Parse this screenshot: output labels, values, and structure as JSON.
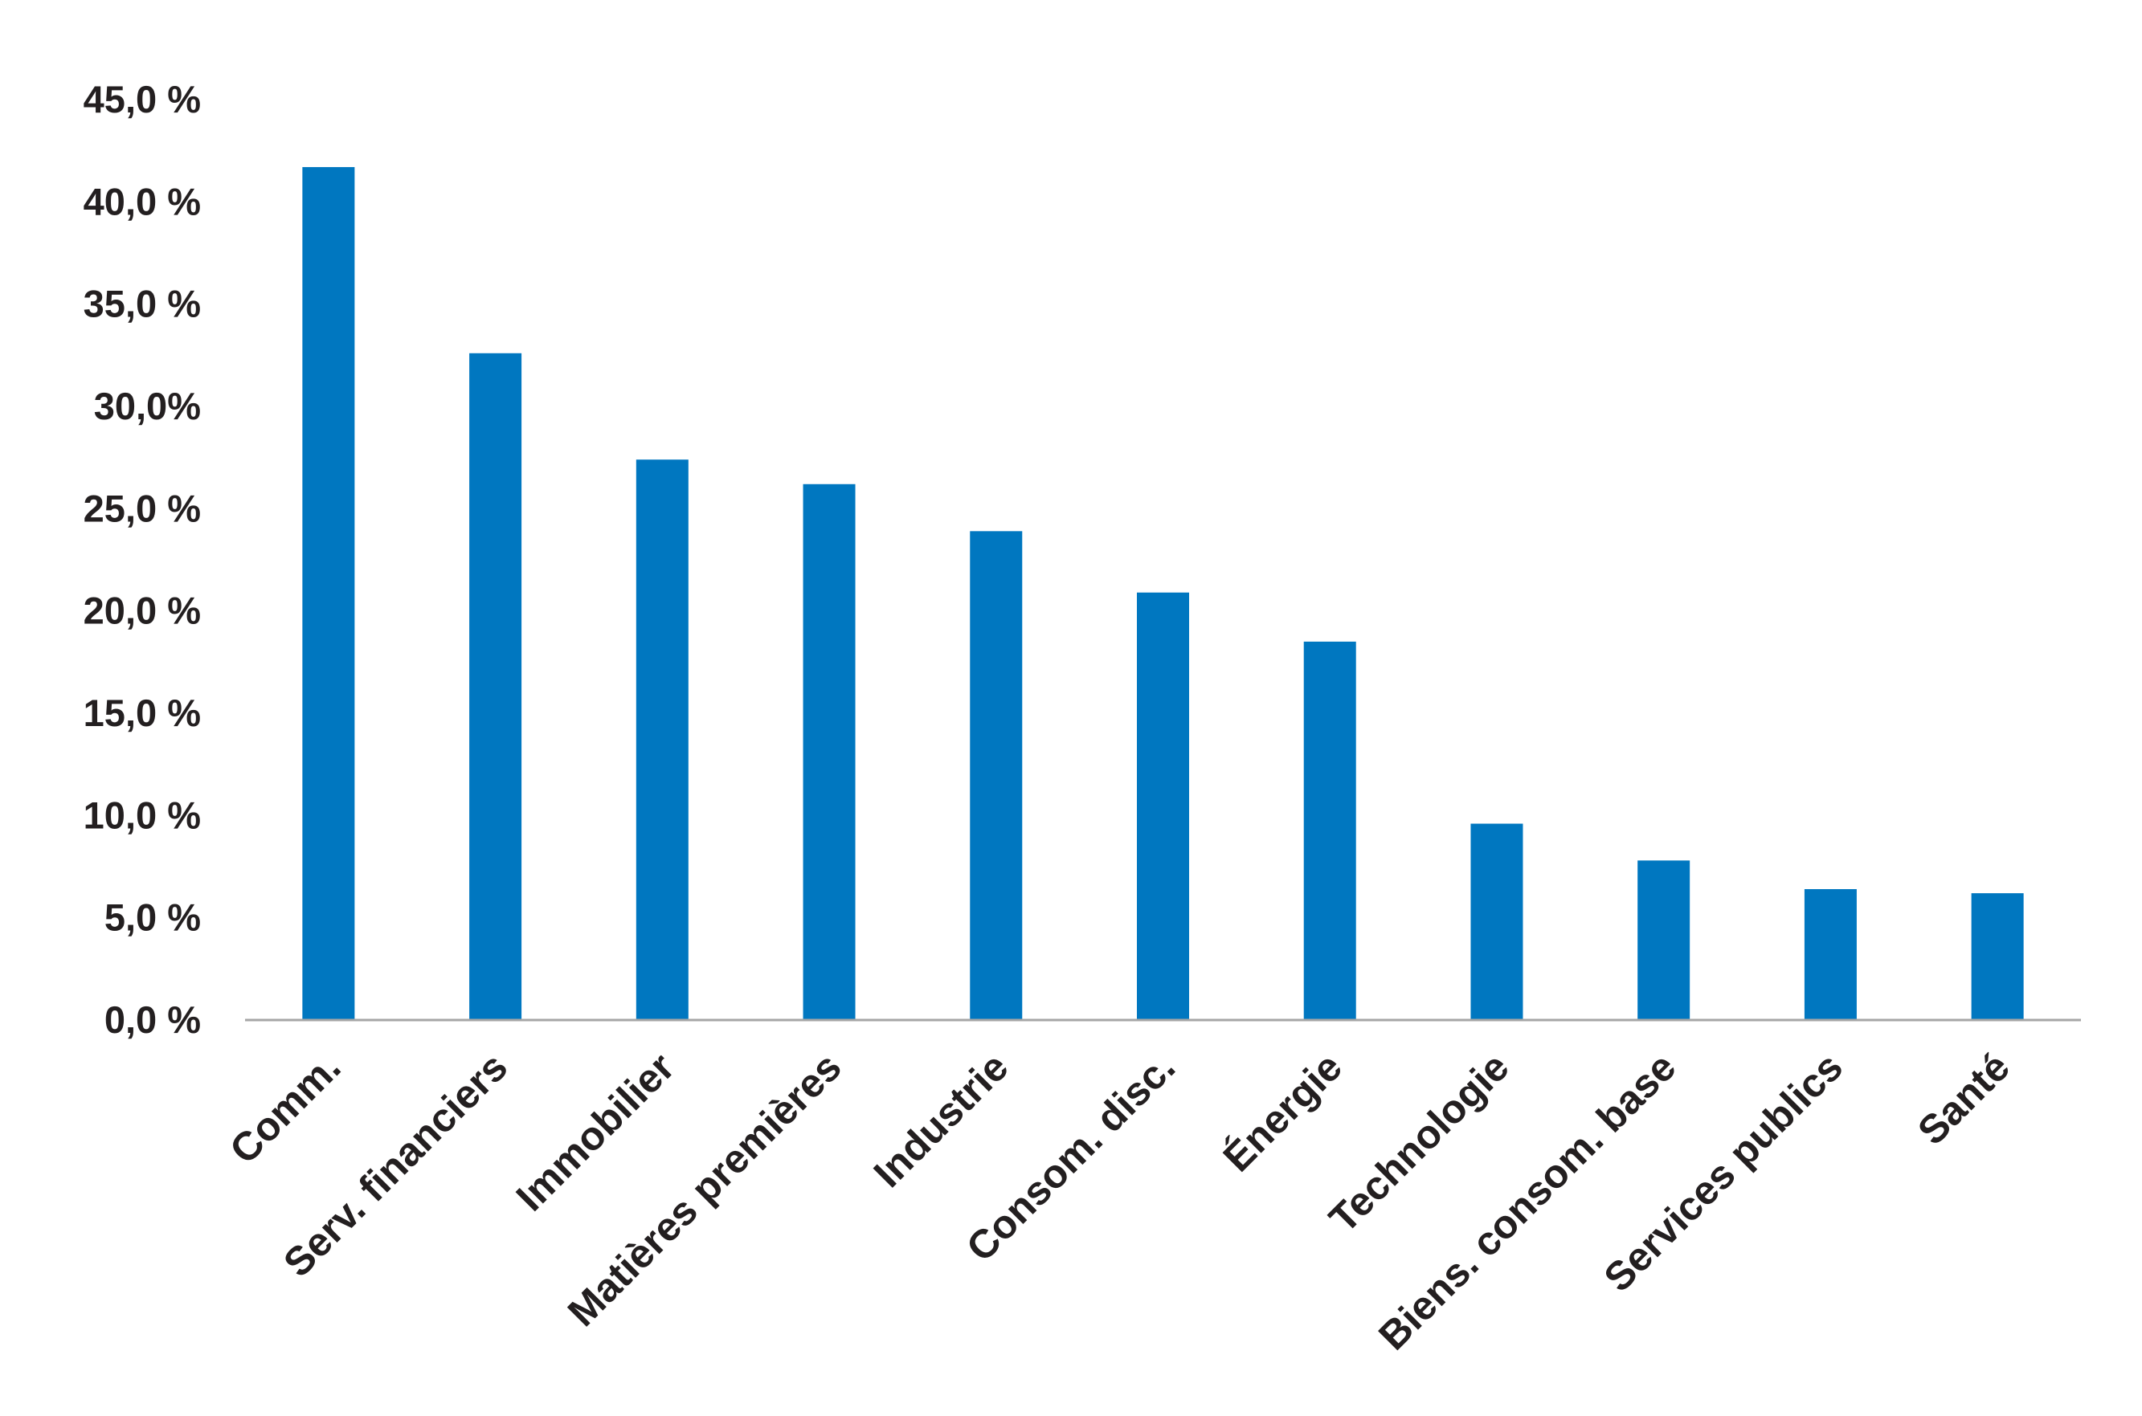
{
  "chart_data": {
    "type": "bar",
    "categories": [
      "Comm.",
      "Serv. financiers",
      "Immobilier",
      "Matières premières",
      "Industrie",
      "Consom. disc.",
      "Énergie",
      "Technologie",
      "Biens. consom. base",
      "Services publics",
      "Santé"
    ],
    "values": [
      41.7,
      32.6,
      27.4,
      26.2,
      23.9,
      20.9,
      18.5,
      9.6,
      7.8,
      6.4,
      6.2
    ],
    "yticks": [
      0,
      5,
      10,
      15,
      20,
      25,
      30,
      35,
      40,
      45
    ],
    "ytick_labels": [
      "0,0 %",
      "5,0 %",
      "10,0 %",
      "15,0 %",
      "20,0 %",
      "25,0 %",
      "30,0%",
      "35,0 %",
      "40,0 %",
      "45,0 %"
    ],
    "ylim": [
      0,
      45
    ],
    "grid": false,
    "bar_color": "#0077c0",
    "axis_color": "#a6a6a6",
    "text_color": "#231f20"
  }
}
